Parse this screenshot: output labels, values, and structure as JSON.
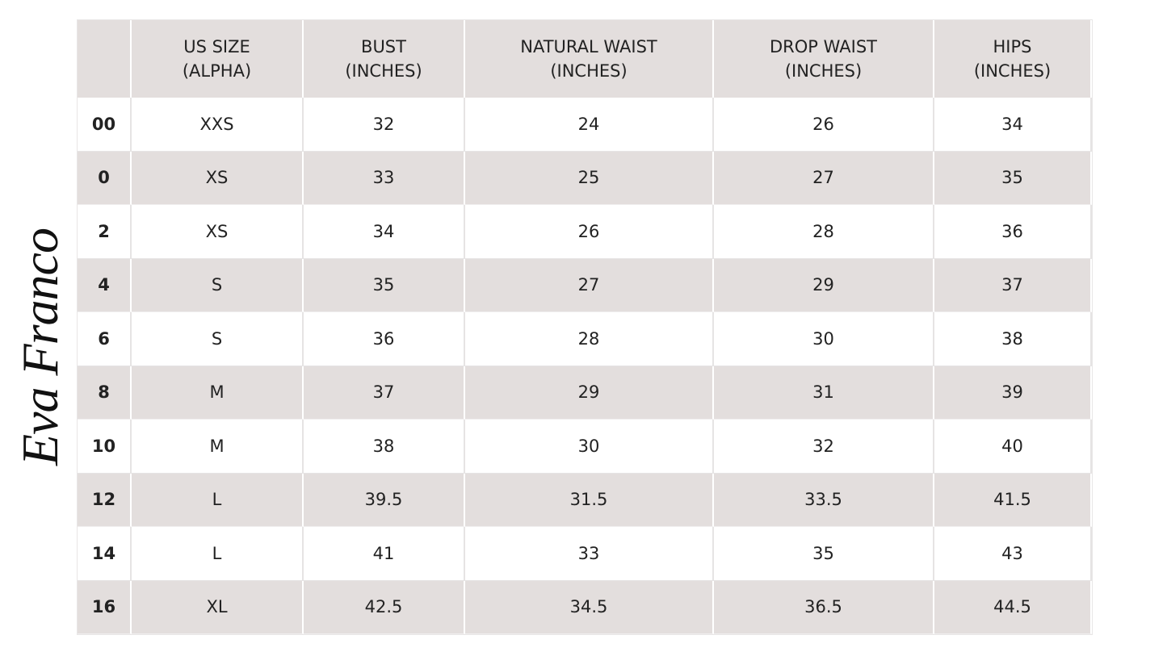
{
  "logo": "Eva Franco",
  "table": {
    "headers": [
      "US SIZE\n(ALPHA)",
      "BUST\n(INCHES)",
      "NATURAL WAIST\n(INCHES)",
      "DROP WAIST\n(INCHES)",
      "HIPS\n(INCHES)"
    ],
    "rows": [
      [
        "00",
        "XXS",
        32,
        24,
        26,
        34
      ],
      [
        "0",
        "XS",
        33,
        25,
        27,
        35
      ],
      [
        "2",
        "XS",
        34,
        26,
        28,
        36
      ],
      [
        "4",
        "S",
        35,
        27,
        29,
        37
      ],
      [
        "6",
        "S",
        36,
        28,
        30,
        38
      ],
      [
        "8",
        "M",
        37,
        29,
        31,
        39
      ],
      [
        "10",
        "M",
        38,
        30,
        32,
        40
      ],
      [
        "12",
        "L",
        39.5,
        31.5,
        33.5,
        41.5
      ],
      [
        "14",
        "L",
        41,
        33,
        35,
        43
      ],
      [
        "16",
        "XL",
        42.5,
        34.5,
        36.5,
        44.5
      ]
    ]
  }
}
